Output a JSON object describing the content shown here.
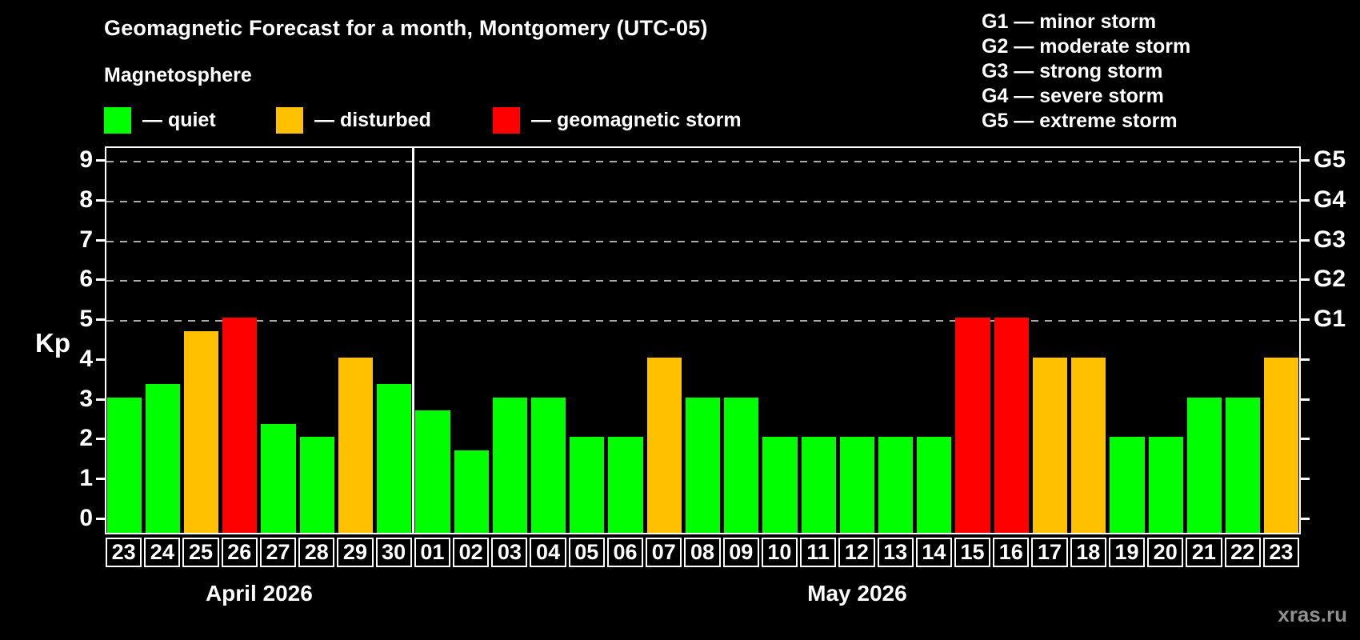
{
  "header": {
    "title": "Geomagnetic Forecast for a month, Montgomery (UTC-05)",
    "subtitle": "Magnetosphere",
    "legend": {
      "items": [
        {
          "key": "quiet",
          "label": "— quiet"
        },
        {
          "key": "disturbed",
          "label": "— disturbed"
        },
        {
          "key": "storm",
          "label": "— geomagnetic storm"
        }
      ]
    },
    "g_legend": [
      "G1 — minor storm",
      "G2 — moderate storm",
      "G3 — strong storm",
      "G4 — severe storm",
      "G5 — extreme storm"
    ]
  },
  "colors": {
    "quiet": "#00ff00",
    "disturbed": "#ffc000",
    "storm": "#ff0000",
    "grid": "#aaaaaa",
    "axis": "#ffffff",
    "text": "#ffffff",
    "watermark": "#8f8f8f",
    "background": "#000000"
  },
  "chart_data": {
    "type": "bar",
    "title": "Geomagnetic Forecast for a month, Montgomery (UTC-05)",
    "xlabel": "",
    "ylabel": "Kp",
    "ylim": [
      0,
      9
    ],
    "y_ticks": [
      0,
      1,
      2,
      3,
      4,
      5,
      6,
      7,
      8,
      9
    ],
    "gridlines_kp": [
      5,
      6,
      7,
      8,
      9
    ],
    "grid_style": "dashed, only at G-storm levels Kp 5-9",
    "legend_position": "top-left",
    "right_axis": [
      {
        "label": "G1",
        "kp": 5
      },
      {
        "label": "G2",
        "kp": 6
      },
      {
        "label": "G3",
        "kp": 7
      },
      {
        "label": "G4",
        "kp": 8
      },
      {
        "label": "G5",
        "kp": 9
      }
    ],
    "sections": [
      {
        "label": "April 2026",
        "days": [
          "23",
          "24",
          "25",
          "26",
          "27",
          "28",
          "29",
          "30"
        ],
        "values": [
          3.0,
          3.33,
          4.67,
          5.0,
          2.33,
          2.0,
          4.0,
          3.33
        ],
        "status": [
          "quiet",
          "quiet",
          "disturbed",
          "storm",
          "quiet",
          "quiet",
          "disturbed",
          "quiet"
        ]
      },
      {
        "label": "May 2026",
        "days": [
          "01",
          "02",
          "03",
          "04",
          "05",
          "06",
          "07",
          "08",
          "09",
          "10",
          "11",
          "12",
          "13",
          "14",
          "15",
          "16",
          "17",
          "18",
          "19",
          "20",
          "21",
          "22",
          "23"
        ],
        "values": [
          2.67,
          1.67,
          3.0,
          3.0,
          2.0,
          2.0,
          4.0,
          3.0,
          3.0,
          2.0,
          2.0,
          2.0,
          2.0,
          2.0,
          5.0,
          5.0,
          4.0,
          4.0,
          2.0,
          2.0,
          3.0,
          3.0,
          4.0
        ],
        "status": [
          "quiet",
          "quiet",
          "quiet",
          "quiet",
          "quiet",
          "quiet",
          "disturbed",
          "quiet",
          "quiet",
          "quiet",
          "quiet",
          "quiet",
          "quiet",
          "quiet",
          "storm",
          "storm",
          "disturbed",
          "disturbed",
          "quiet",
          "quiet",
          "quiet",
          "quiet",
          "disturbed"
        ]
      }
    ]
  },
  "watermark": "xras.ru"
}
